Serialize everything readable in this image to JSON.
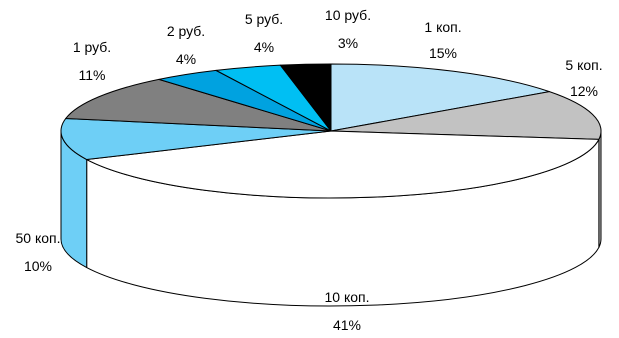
{
  "chart_data": {
    "type": "pie",
    "style": "3d",
    "title": "",
    "slices": [
      {
        "label": "1 коп.",
        "value": 15,
        "value_label": "15%",
        "color": "#B9E3F8"
      },
      {
        "label": "5 коп.",
        "value": 12,
        "value_label": "12%",
        "color": "#C2C2C2"
      },
      {
        "label": "10 коп.",
        "value": 41,
        "value_label": "41%",
        "color": "#FFFFFF"
      },
      {
        "label": "50 коп.",
        "value": 10,
        "value_label": "10%",
        "color": "#6ECFF6"
      },
      {
        "label": "1 руб.",
        "value": 11,
        "value_label": "11%",
        "color": "#808080"
      },
      {
        "label": "2 руб.",
        "value": 4,
        "value_label": "4%",
        "color": "#00A2E0"
      },
      {
        "label": "5 руб.",
        "value": 4,
        "value_label": "4%",
        "color": "#00BFF3"
      },
      {
        "label": "10 руб.",
        "value": 3,
        "value_label": "3%",
        "color": "#000000"
      }
    ]
  }
}
